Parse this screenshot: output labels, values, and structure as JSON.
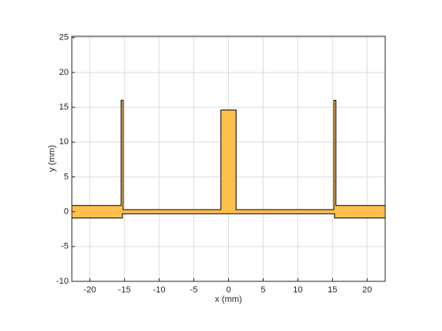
{
  "chart_data": {
    "type": "polygon",
    "xlabel": "x (mm)",
    "ylabel": "y (mm)",
    "x": [
      -22.6,
      -15.3,
      -15.3,
      15.3,
      15.3,
      22.6,
      22.6,
      15.5,
      15.5,
      15.2,
      15.2,
      1.1,
      1.1,
      -1.1,
      -1.1,
      -15.2,
      -15.2,
      -15.5,
      -15.5,
      -22.6
    ],
    "y": [
      -0.9,
      -0.9,
      -0.3,
      -0.3,
      -0.9,
      -0.9,
      0.9,
      0.9,
      16,
      16,
      0.3,
      0.3,
      14.6,
      14.6,
      0.3,
      0.3,
      16,
      16,
      0.9,
      0.9
    ],
    "color": "#ffbf4d",
    "edge_color": "#000000",
    "xlim": [
      -22.6,
      22.6
    ],
    "ylim": [
      -10,
      25.2
    ],
    "xticks": [
      -20,
      -15,
      -10,
      -5,
      0,
      5,
      10,
      15,
      20
    ],
    "yticks": [
      -10,
      -5,
      0,
      5,
      10,
      15,
      20,
      25
    ],
    "grid": true
  }
}
